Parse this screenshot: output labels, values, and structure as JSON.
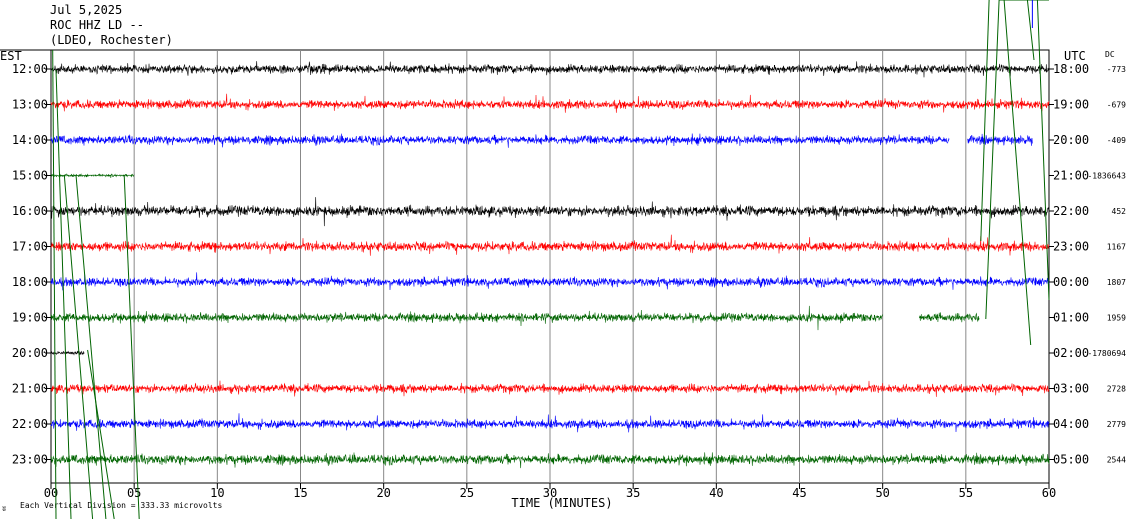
{
  "header": {
    "date": "Jul 5,2025",
    "station": "ROC HHZ LD --",
    "network": "(LDEO, Rochester)"
  },
  "chart_data": {
    "type": "line",
    "title": "",
    "left_axis_label": "EST",
    "right_axis_label": "UTC",
    "dc_label": "DC",
    "xlabel": "TIME (MINUTES)",
    "xlim": [
      0,
      60
    ],
    "x_ticks": [
      "00",
      "05",
      "10",
      "15",
      "20",
      "25",
      "30",
      "35",
      "40",
      "45",
      "50",
      "55",
      "60"
    ],
    "grid": true,
    "scale_note": "Each Vertical Division = 333.33 microvolts",
    "corner_mark": "ʬ",
    "colors": {
      "black": "#000000",
      "red": "#ff0000",
      "blue": "#0000ff",
      "green": "#006400"
    },
    "rows": [
      {
        "est": "12:00",
        "utc": "18:00",
        "dc": "-773",
        "color": "#000000",
        "amplitude": 1.0,
        "segments": [
          [
            0,
            60
          ]
        ]
      },
      {
        "est": "13:00",
        "utc": "19:00",
        "dc": "-679",
        "color": "#ff0000",
        "amplitude": 1.0,
        "segments": [
          [
            0,
            60
          ]
        ]
      },
      {
        "est": "14:00",
        "utc": "20:00",
        "dc": "-409",
        "color": "#0000ff",
        "amplitude": 1.0,
        "segments": [
          [
            0,
            54
          ],
          [
            55.1,
            59
          ]
        ]
      },
      {
        "est": "15:00",
        "utc": "21:00",
        "dc": "-1836643",
        "color": "#006400",
        "amplitude": 0.3,
        "segments": [
          [
            0,
            5
          ]
        ]
      },
      {
        "est": "16:00",
        "utc": "22:00",
        "dc": "452",
        "color": "#000000",
        "amplitude": 1.2,
        "segments": [
          [
            0,
            60
          ]
        ]
      },
      {
        "est": "17:00",
        "utc": "23:00",
        "dc": "1167",
        "color": "#ff0000",
        "amplitude": 1.1,
        "segments": [
          [
            0,
            60
          ]
        ]
      },
      {
        "est": "18:00",
        "utc": "00:00",
        "dc": "1807",
        "color": "#0000ff",
        "amplitude": 1.0,
        "segments": [
          [
            0,
            60
          ]
        ]
      },
      {
        "est": "19:00",
        "utc": "01:00",
        "dc": "1959",
        "color": "#006400",
        "amplitude": 1.0,
        "segments": [
          [
            0,
            50
          ],
          [
            52.2,
            55.8
          ]
        ]
      },
      {
        "est": "20:00",
        "utc": "02:00",
        "dc": "-1780694",
        "color": "#000000",
        "amplitude": 0.4,
        "segments": [
          [
            0,
            2
          ]
        ]
      },
      {
        "est": "21:00",
        "utc": "03:00",
        "dc": "2728",
        "color": "#ff0000",
        "amplitude": 1.0,
        "segments": [
          [
            0,
            60
          ]
        ]
      },
      {
        "est": "22:00",
        "utc": "04:00",
        "dc": "2779",
        "color": "#0000ff",
        "amplitude": 1.0,
        "segments": [
          [
            0,
            60
          ]
        ]
      },
      {
        "est": "23:00",
        "utc": "05:00",
        "dc": "2544",
        "color": "#006400",
        "amplitude": 1.1,
        "segments": [
          [
            0,
            60
          ]
        ]
      }
    ]
  }
}
